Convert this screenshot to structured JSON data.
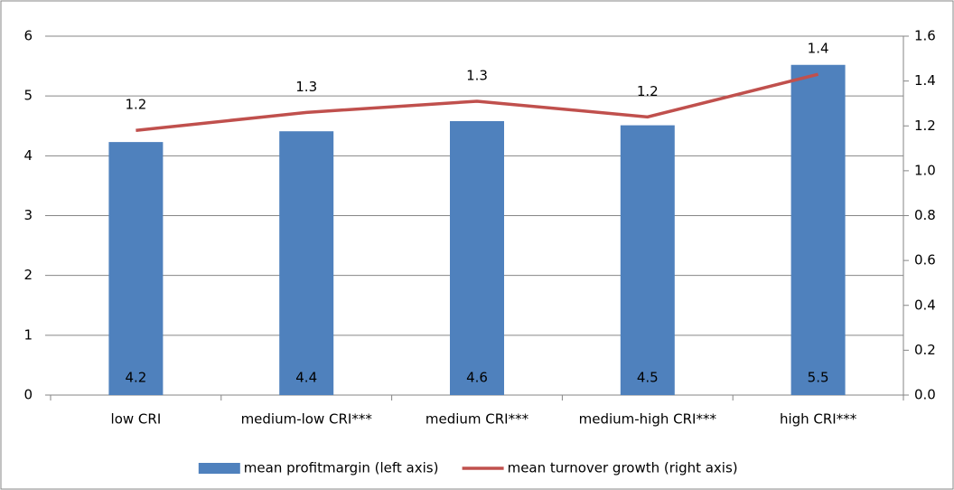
{
  "chart_data": {
    "type": "combo",
    "categories": [
      "low CRI",
      "medium-low CRI***",
      "medium CRI***",
      "medium-high CRI***",
      "high CRI***"
    ],
    "series": [
      {
        "name": "mean profitmargin (left axis)",
        "type": "bar",
        "color": "#4f81bd",
        "values": [
          4.23,
          4.41,
          4.58,
          4.51,
          5.52
        ],
        "value_labels": [
          "4.2",
          "4.4",
          "4.6",
          "4.5",
          "5.5"
        ]
      },
      {
        "name": "mean turnover growth (right axis)",
        "type": "line",
        "axis": "y2",
        "color": "#c0504d",
        "values": [
          1.18,
          1.26,
          1.31,
          1.24,
          1.43
        ],
        "value_labels": [
          "1.2",
          "1.3",
          "1.3",
          "1.2",
          "1.4"
        ]
      }
    ],
    "ylim": [
      0,
      6
    ],
    "yticks": [
      0,
      1,
      2,
      3,
      4,
      5,
      6
    ],
    "y2lim": [
      0,
      1.6
    ],
    "y2ticks": [
      {
        "value": 0,
        "label": "0.0"
      },
      0.2,
      0.4,
      0.6,
      0.8,
      {
        "value": 1,
        "label": "1.0"
      },
      1.2,
      1.4,
      1.6
    ],
    "grid": true,
    "legend": "bottom"
  }
}
